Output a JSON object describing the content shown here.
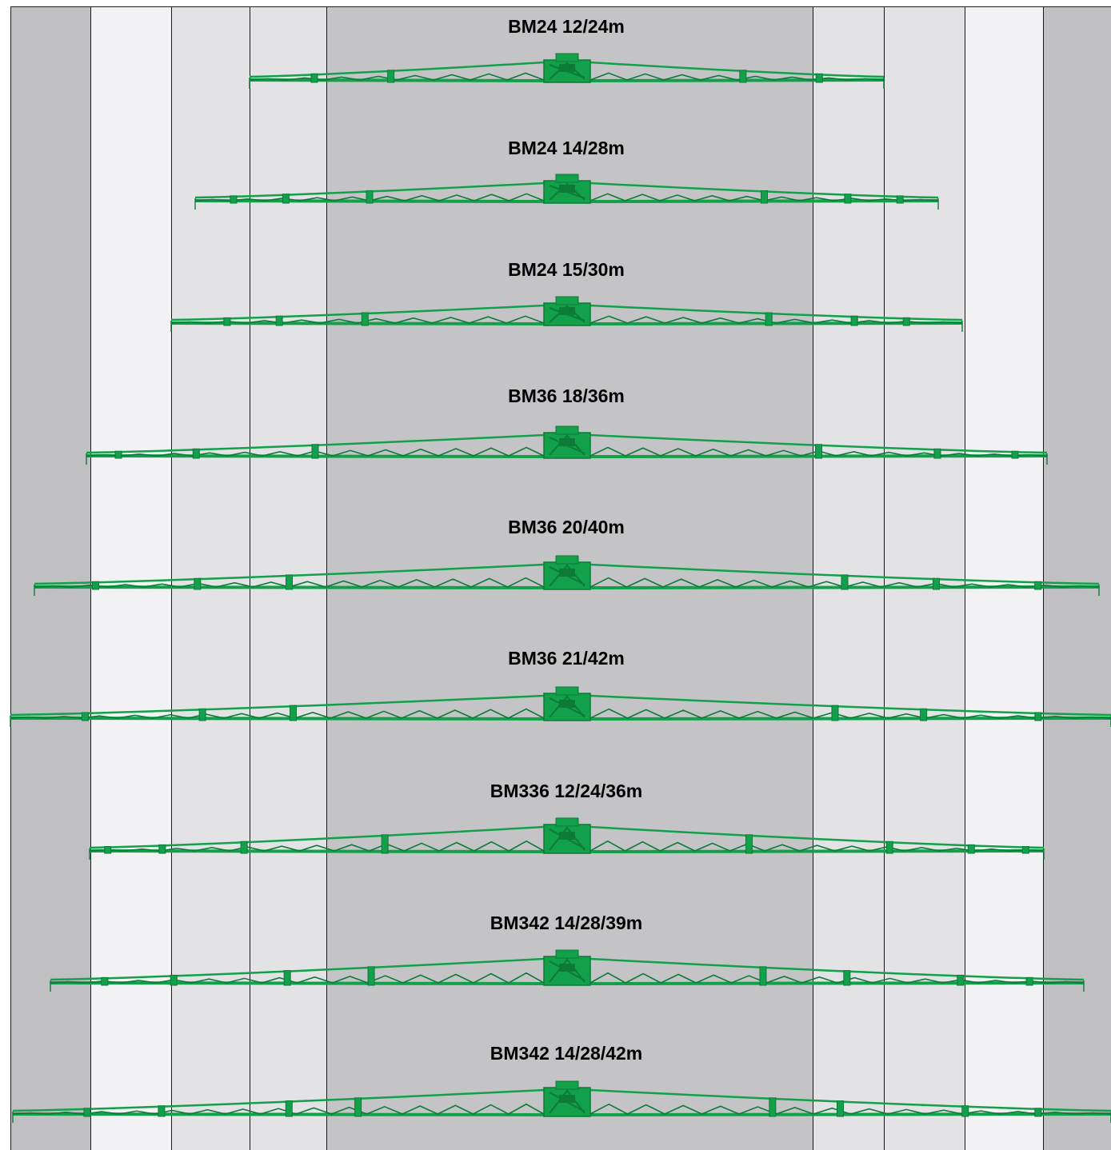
{
  "colors": {
    "boom_green": "#12a04a",
    "boom_dark": "#0d7a37",
    "outer_band": "#c0c0c2",
    "light_band": "#f2f2f4",
    "mid_band": "#e3e3e6",
    "center_band": "#c4c4c7",
    "divider": "#1a1a1a"
  },
  "booms": [
    {
      "name": "BM24 12/24m"
    },
    {
      "name": "BM24 14/28m"
    },
    {
      "name": "BM24 15/30m"
    },
    {
      "name": "BM36 18/36m"
    },
    {
      "name": "BM36 20/40m"
    },
    {
      "name": "BM36 21/42m"
    },
    {
      "name": "BM336 12/24/36m"
    },
    {
      "name": "BM342 14/28/39m"
    },
    {
      "name": "BM342 14/28/42m"
    }
  ]
}
